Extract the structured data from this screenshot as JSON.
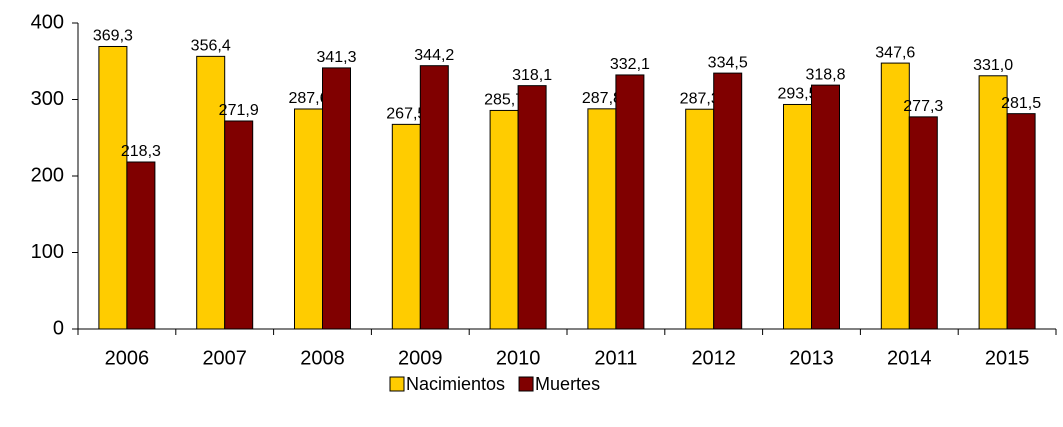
{
  "chart_data": {
    "type": "bar",
    "categories": [
      "2006",
      "2007",
      "2008",
      "2009",
      "2010",
      "2011",
      "2012",
      "2013",
      "2014",
      "2015"
    ],
    "series": [
      {
        "name": "Nacimientos",
        "color": "#ffcc00",
        "values": [
          369.3,
          356.4,
          287.6,
          267.5,
          285.7,
          287.8,
          287.3,
          293.5,
          347.6,
          331.0
        ],
        "value_labels": [
          "369,3",
          "356,4",
          "287,6",
          "267,5",
          "285,7",
          "287,8",
          "287,3",
          "293,5",
          "347,6",
          "331,0"
        ]
      },
      {
        "name": "Muertes",
        "color": "#800000",
        "values": [
          218.3,
          271.9,
          341.3,
          344.2,
          318.1,
          332.1,
          334.5,
          318.8,
          277.3,
          281.5
        ],
        "value_labels": [
          "218,3",
          "271,9",
          "341,3",
          "344,2",
          "318,1",
          "332,1",
          "334,5",
          "318,8",
          "277,3",
          "281,5"
        ]
      }
    ],
    "ylim": [
      0,
      400
    ],
    "yticks": [
      0,
      100,
      200,
      300,
      400
    ],
    "grid": false,
    "legend": "bottom"
  }
}
